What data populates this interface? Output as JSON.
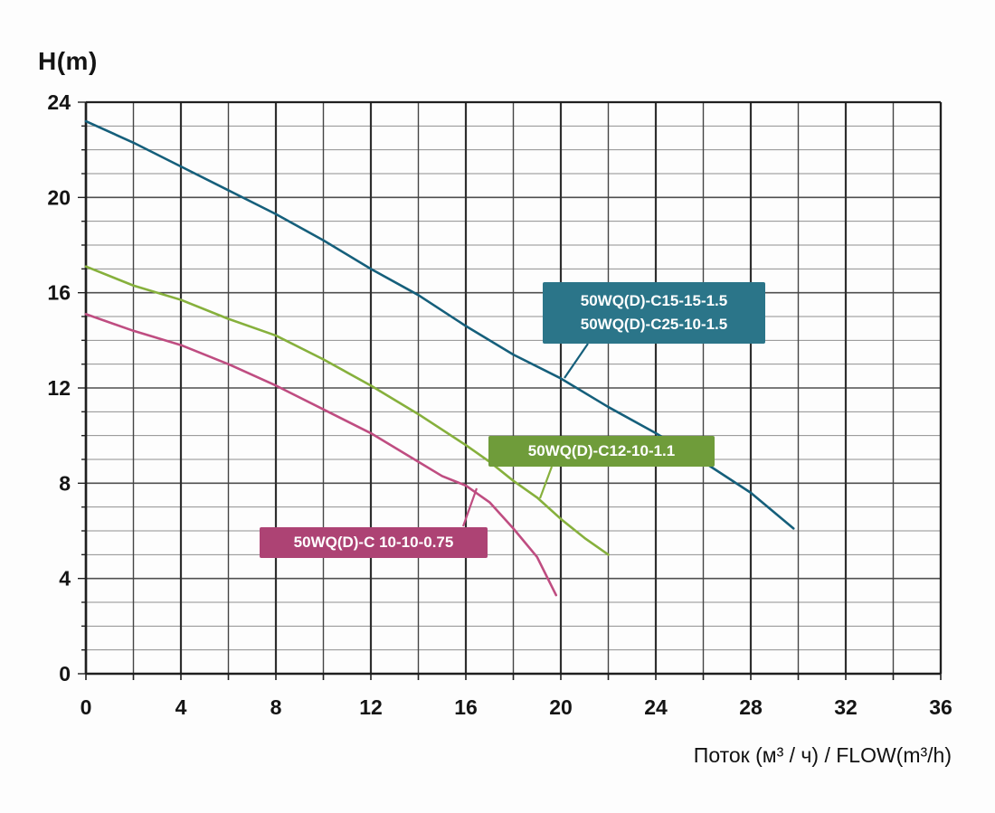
{
  "chart_data": {
    "type": "line",
    "title": "",
    "ylabel": "H(m)",
    "xlabel": "Поток (м³ / ч) / FLOW(m³/h)",
    "xlim": [
      0,
      36
    ],
    "ylim": [
      0,
      24
    ],
    "x_ticks": [
      0,
      4,
      8,
      12,
      16,
      20,
      24,
      28,
      32,
      36
    ],
    "y_ticks": [
      0,
      4,
      8,
      12,
      16,
      20,
      24
    ],
    "grid": {
      "vertical_step": 2,
      "horizontal_step": 1,
      "major_step": 4,
      "on": true
    },
    "legend_position": "inline-callouts",
    "series": [
      {
        "name": "50WQ(D)-C15-15-1.5 / 50WQ(D)-C25-10-1.5",
        "color": "#155f7b",
        "points": [
          [
            0,
            23.2
          ],
          [
            2,
            22.3
          ],
          [
            4,
            21.3
          ],
          [
            6,
            20.3
          ],
          [
            8,
            19.3
          ],
          [
            10,
            18.2
          ],
          [
            12,
            17.0
          ],
          [
            14,
            15.9
          ],
          [
            16,
            14.6
          ],
          [
            18,
            13.4
          ],
          [
            20,
            12.4
          ],
          [
            22,
            11.2
          ],
          [
            24,
            10.1
          ],
          [
            26,
            8.9
          ],
          [
            28,
            7.6
          ],
          [
            29.8,
            6.1
          ]
        ]
      },
      {
        "name": "50WQ(D)-C12-10-1.1",
        "color": "#86b03c",
        "points": [
          [
            0,
            17.1
          ],
          [
            2,
            16.3
          ],
          [
            4,
            15.7
          ],
          [
            6,
            14.9
          ],
          [
            8,
            14.2
          ],
          [
            10,
            13.2
          ],
          [
            12,
            12.1
          ],
          [
            14,
            10.9
          ],
          [
            16,
            9.6
          ],
          [
            17,
            8.9
          ],
          [
            18,
            8.1
          ],
          [
            19,
            7.4
          ],
          [
            20,
            6.5
          ],
          [
            21,
            5.7
          ],
          [
            22,
            5.0
          ]
        ]
      },
      {
        "name": "50WQ(D)-C 10-10-0.75",
        "color": "#bf4d81",
        "points": [
          [
            0,
            15.1
          ],
          [
            2,
            14.4
          ],
          [
            4,
            13.8
          ],
          [
            6,
            13.0
          ],
          [
            8,
            12.1
          ],
          [
            10,
            11.1
          ],
          [
            12,
            10.1
          ],
          [
            14,
            8.9
          ],
          [
            15,
            8.3
          ],
          [
            16,
            7.9
          ],
          [
            17,
            7.2
          ],
          [
            18,
            6.1
          ],
          [
            19,
            4.9
          ],
          [
            19.8,
            3.3
          ]
        ]
      }
    ],
    "callouts": [
      {
        "lines": [
          "50WQ(D)-C15-15-1.5",
          "50WQ(D)-C25-10-1.5"
        ],
        "bg": "#2b7589"
      },
      {
        "lines": [
          "50WQ(D)-C12-10-1.1",
          ""
        ],
        "bg": "#6f9c3a"
      },
      {
        "lines": [
          "50WQ(D)-C 10-10-0.75",
          ""
        ],
        "bg": "#ad4374"
      }
    ]
  }
}
